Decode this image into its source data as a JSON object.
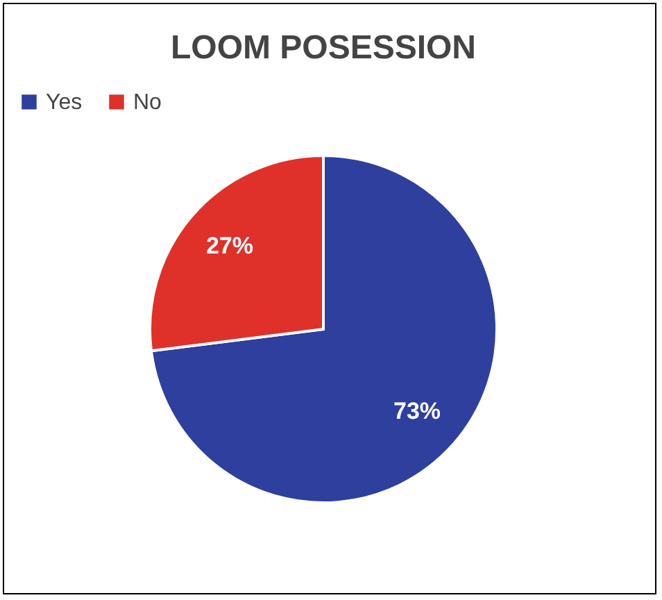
{
  "chart_data": {
    "type": "pie",
    "title": "LOOM POSESSION",
    "categories": [
      "Yes",
      "No"
    ],
    "values": [
      73,
      27
    ],
    "colors": [
      "#2e3f9e",
      "#e0302a"
    ],
    "value_labels": [
      "73%",
      "27%"
    ],
    "legend": "top"
  }
}
